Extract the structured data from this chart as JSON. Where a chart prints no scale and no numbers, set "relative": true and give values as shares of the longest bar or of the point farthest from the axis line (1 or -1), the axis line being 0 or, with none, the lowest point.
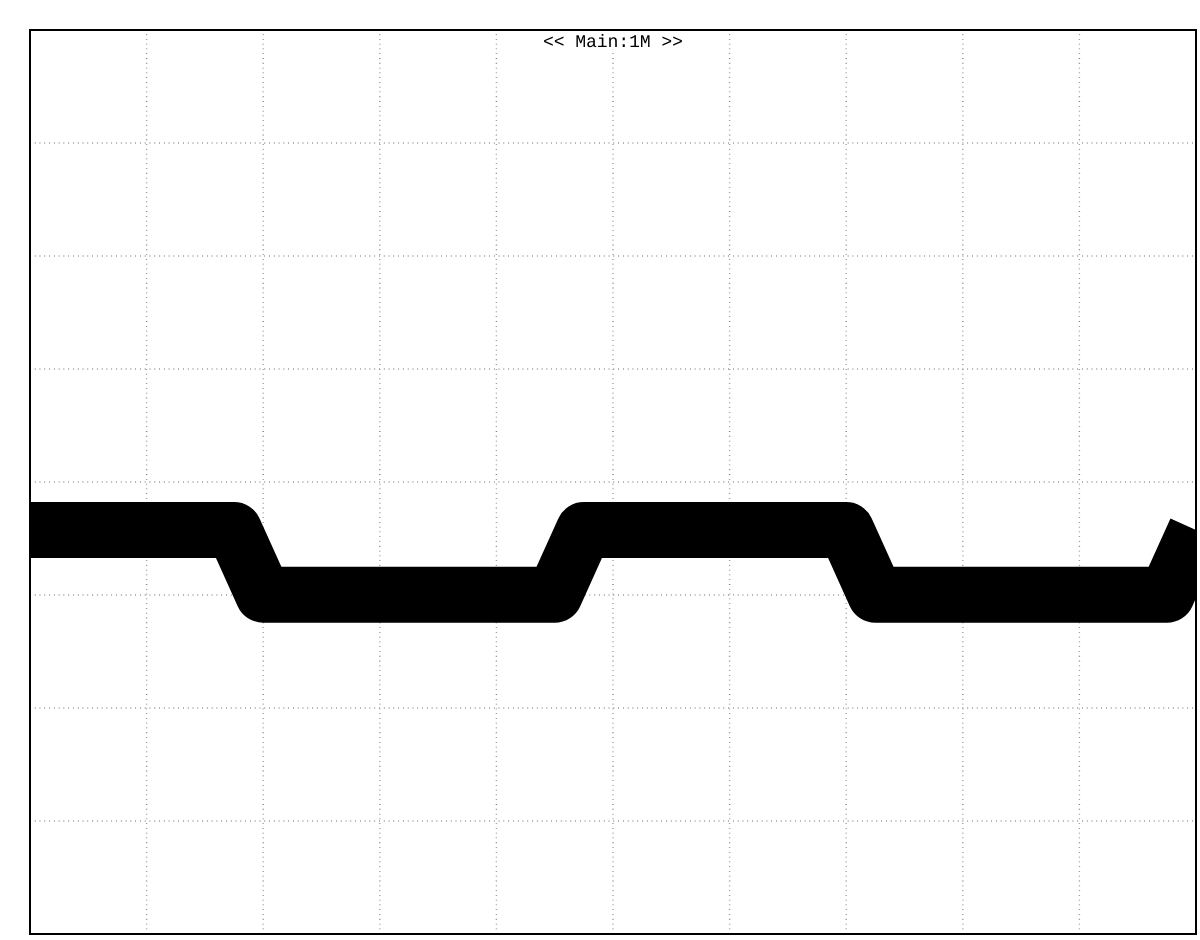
{
  "chart_data": {
    "type": "line",
    "title": "<< Main:1M >>",
    "relative": true,
    "grid": true,
    "tick_labels": false,
    "marker": "none",
    "line_style": "solid",
    "categories": [
      null,
      null,
      null,
      null,
      null,
      null,
      null,
      null,
      null,
      null,
      null,
      null,
      null,
      null,
      null,
      null,
      null,
      null,
      null,
      null,
      null,
      null,
      null,
      null,
      null,
      null,
      null,
      null,
      null,
      null,
      null,
      null,
      null,
      null,
      null,
      null,
      null,
      null,
      null,
      null,
      null
    ],
    "series": [
      {
        "color": "#000000",
        "values": [
          1,
          1,
          1,
          1,
          1,
          1,
          1,
          1,
          0.84,
          0.84,
          0.84,
          0.84,
          0.84,
          0.84,
          0.84,
          0.84,
          0.84,
          0.84,
          0.84,
          1,
          1,
          1,
          1,
          1,
          1,
          1,
          1,
          1,
          1,
          0.84,
          0.84,
          0.84,
          0.84,
          0.84,
          0.84,
          0.84,
          0.84,
          0.84,
          0.84,
          0.84,
          1
        ]
      }
    ]
  }
}
